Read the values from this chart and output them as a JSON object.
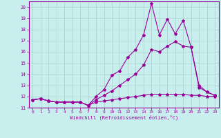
{
  "xlabel": "Windchill (Refroidissement éolien,°C)",
  "xlim": [
    -0.5,
    23.5
  ],
  "ylim": [
    11,
    20.5
  ],
  "yticks": [
    11,
    12,
    13,
    14,
    15,
    16,
    17,
    18,
    19,
    20
  ],
  "xticks": [
    0,
    1,
    2,
    3,
    4,
    5,
    6,
    7,
    8,
    9,
    10,
    11,
    12,
    13,
    14,
    15,
    16,
    17,
    18,
    19,
    20,
    21,
    22,
    23
  ],
  "background_color": "#c8eeee",
  "grid_color": "#aacccc",
  "line_color": "#990099",
  "series": [
    {
      "x": [
        0,
        1,
        2,
        3,
        4,
        5,
        6,
        7,
        8,
        9,
        10,
        11,
        12,
        13,
        14,
        15,
        16,
        17,
        18,
        19,
        20,
        21,
        22,
        23
      ],
      "y": [
        11.7,
        11.8,
        11.6,
        11.5,
        11.5,
        11.5,
        11.5,
        11.2,
        11.5,
        11.6,
        11.7,
        11.8,
        11.9,
        12.0,
        12.1,
        12.2,
        12.2,
        12.2,
        12.2,
        12.2,
        12.1,
        12.1,
        12.0,
        12.0
      ]
    },
    {
      "x": [
        0,
        1,
        2,
        3,
        4,
        5,
        6,
        7,
        8,
        9,
        10,
        11,
        12,
        13,
        14,
        15,
        16,
        17,
        18,
        19,
        20,
        21,
        22,
        23
      ],
      "y": [
        11.7,
        11.8,
        11.6,
        11.5,
        11.5,
        11.5,
        11.5,
        11.2,
        12.0,
        12.6,
        13.9,
        14.3,
        15.5,
        16.2,
        17.5,
        20.3,
        17.5,
        18.9,
        17.6,
        18.8,
        16.4,
        13.0,
        12.4,
        12.1
      ]
    },
    {
      "x": [
        0,
        1,
        2,
        3,
        4,
        5,
        6,
        7,
        8,
        9,
        10,
        11,
        12,
        13,
        14,
        15,
        16,
        17,
        18,
        19,
        20,
        21,
        22,
        23
      ],
      "y": [
        11.7,
        11.8,
        11.6,
        11.5,
        11.5,
        11.5,
        11.5,
        11.2,
        11.7,
        12.1,
        12.5,
        13.0,
        13.5,
        14.0,
        14.8,
        16.2,
        16.0,
        16.5,
        16.9,
        16.5,
        16.4,
        12.8,
        12.4,
        12.1
      ]
    }
  ]
}
